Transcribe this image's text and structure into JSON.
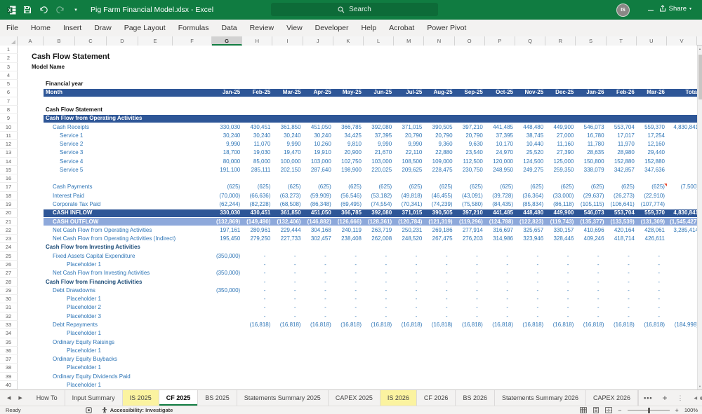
{
  "titlebar": {
    "title": "Pig Farm Financial Model.xlsx - Excel",
    "search_placeholder": "Search",
    "avatar_initials": "IS"
  },
  "ribbon": {
    "tabs": [
      "File",
      "Home",
      "Insert",
      "Draw",
      "Page Layout",
      "Formulas",
      "Data",
      "Review",
      "View",
      "Developer",
      "Help",
      "Acrobat",
      "Power Pivot"
    ],
    "share_label": "Share"
  },
  "sheet": {
    "columns": [
      "A",
      "B",
      "C",
      "D",
      "E",
      "F",
      "G",
      "H",
      "I",
      "J",
      "K",
      "L",
      "M",
      "N",
      "O",
      "P",
      "Q",
      "R",
      "S",
      "T",
      "U",
      "V"
    ],
    "selected_column": "G",
    "visible_rows": 40,
    "months": [
      "Jan-25",
      "Feb-25",
      "Mar-25",
      "Apr-25",
      "May-25",
      "Jun-25",
      "Jul-25",
      "Aug-25",
      "Sep-25",
      "Oct-25",
      "Nov-25",
      "Dec-25",
      "Jan-26",
      "Feb-26",
      "Mar-26",
      "Total"
    ],
    "rows": [
      {
        "n": 2,
        "type": "title",
        "label": "Cash Flow Statement"
      },
      {
        "n": 3,
        "type": "subtitle",
        "label": "Model Name"
      },
      {
        "n": 5,
        "type": "boldlabel",
        "label": "Financial year",
        "indent": 0
      },
      {
        "n": 6,
        "type": "monthbar",
        "label": "Month"
      },
      {
        "n": 8,
        "type": "boldlabel",
        "label": "Cash Flow Statement",
        "indent": 0
      },
      {
        "n": 9,
        "type": "bluebar",
        "label": "Cash Flow from Operating Activities"
      },
      {
        "n": 10,
        "type": "data",
        "label": "Cash Receipts",
        "indent": 1,
        "values": [
          "330,030",
          "430,451",
          "361,850",
          "451,050",
          "366,785",
          "392,080",
          "371,015",
          "390,505",
          "397,210",
          "441,485",
          "448,480",
          "449,900",
          "546,073",
          "553,704",
          "559,370",
          "4,830,841"
        ]
      },
      {
        "n": 11,
        "type": "data",
        "label": "Service 1",
        "indent": 2,
        "values": [
          "30,240",
          "30,240",
          "30,240",
          "30,240",
          "34,425",
          "37,395",
          "20,790",
          "20,790",
          "20,790",
          "37,395",
          "38,745",
          "27,000",
          "16,780",
          "17,017",
          "17,254",
          ""
        ]
      },
      {
        "n": 12,
        "type": "data",
        "label": "Service 2",
        "indent": 2,
        "values": [
          "9,990",
          "11,070",
          "9,990",
          "10,260",
          "9,810",
          "9,990",
          "9,990",
          "9,360",
          "9,630",
          "10,170",
          "10,440",
          "11,160",
          "11,780",
          "11,970",
          "12,160",
          ""
        ]
      },
      {
        "n": 13,
        "type": "data",
        "label": "Service 3",
        "indent": 2,
        "values": [
          "18,700",
          "19,030",
          "19,470",
          "19,910",
          "20,900",
          "21,670",
          "22,110",
          "22,880",
          "23,540",
          "24,970",
          "25,520",
          "27,390",
          "28,635",
          "28,980",
          "29,440",
          ""
        ]
      },
      {
        "n": 14,
        "type": "data",
        "label": "Service 4",
        "indent": 2,
        "values": [
          "80,000",
          "85,000",
          "100,000",
          "103,000",
          "102,750",
          "103,000",
          "108,500",
          "109,000",
          "112,500",
          "120,000",
          "124,500",
          "125,000",
          "150,800",
          "152,880",
          "152,880",
          ""
        ]
      },
      {
        "n": 15,
        "type": "data",
        "label": "Service 5",
        "indent": 2,
        "values": [
          "191,100",
          "285,111",
          "202,150",
          "287,640",
          "198,900",
          "220,025",
          "209,625",
          "228,475",
          "230,750",
          "248,950",
          "249,275",
          "259,350",
          "338,079",
          "342,857",
          "347,636",
          ""
        ]
      },
      {
        "n": 17,
        "type": "data",
        "label": "Cash Payments",
        "indent": 1,
        "comment_col": 14,
        "values": [
          "(625)",
          "(625)",
          "(625)",
          "(625)",
          "(625)",
          "(625)",
          "(625)",
          "(625)",
          "(625)",
          "(625)",
          "(625)",
          "(625)",
          "(625)",
          "(625)",
          "(625)",
          "(7,500)"
        ]
      },
      {
        "n": 18,
        "type": "data",
        "label": "Interest Paid",
        "indent": 1,
        "values": [
          "(70,000)",
          "(66,636)",
          "(63,273)",
          "(59,909)",
          "(56,546)",
          "(53,182)",
          "(49,818)",
          "(46,455)",
          "(43,091)",
          "(39,728)",
          "(36,364)",
          "(33,000)",
          "(29,637)",
          "(26,273)",
          "(22,910)",
          ""
        ]
      },
      {
        "n": 19,
        "type": "data",
        "label": "Corporate Tax Paid",
        "indent": 1,
        "values": [
          "(62,244)",
          "(82,228)",
          "(68,508)",
          "(86,348)",
          "(69,495)",
          "(74,554)",
          "(70,341)",
          "(74,239)",
          "(75,580)",
          "(84,435)",
          "(85,834)",
          "(86,118)",
          "(105,115)",
          "(106,641)",
          "(107,774)",
          ""
        ]
      },
      {
        "n": 20,
        "type": "inflowbar",
        "label": "CASH INFLOW",
        "values": [
          "330,030",
          "430,451",
          "361,850",
          "451,050",
          "366,785",
          "392,080",
          "371,015",
          "390,505",
          "397,210",
          "441,485",
          "448,480",
          "449,900",
          "546,073",
          "553,704",
          "559,370",
          "4,830,841"
        ]
      },
      {
        "n": 21,
        "type": "outflowbar",
        "label": "CASH OUTFLOW",
        "values": [
          "(132,869)",
          "(149,490)",
          "(132,406)",
          "(146,882)",
          "(126,666)",
          "(128,361)",
          "(120,784)",
          "(121,319)",
          "(119,296)",
          "(124,788)",
          "(122,823)",
          "(119,743)",
          "(135,377)",
          "(133,539)",
          "(131,309)",
          "(1,545,427)"
        ]
      },
      {
        "n": 22,
        "type": "data",
        "label": "Net Cash Flow from Operating Activities",
        "indent": 0,
        "values": [
          "197,161",
          "280,961",
          "229,444",
          "304,168",
          "240,119",
          "263,719",
          "250,231",
          "269,186",
          "277,914",
          "316,697",
          "325,657",
          "330,157",
          "410,696",
          "420,164",
          "428,061",
          "3,285,414"
        ]
      },
      {
        "n": 23,
        "type": "data",
        "label": "Net Cash Flow from Operating Activities (Indirect)",
        "indent": 0,
        "values": [
          "195,450",
          "279,250",
          "227,733",
          "302,457",
          "238,408",
          "262,008",
          "248,520",
          "267,475",
          "276,203",
          "314,986",
          "323,946",
          "328,446",
          "409,246",
          "418,714",
          "426,611",
          ""
        ]
      },
      {
        "n": 24,
        "type": "section",
        "label": "Cash Flow from Investing Activities"
      },
      {
        "n": 25,
        "type": "data",
        "label": "Fixed Assets Capital Expenditure",
        "indent": 1,
        "values": [
          "(350,000)",
          "-",
          "-",
          "-",
          "-",
          "-",
          "-",
          "-",
          "-",
          "-",
          "-",
          "-",
          "-",
          "-",
          "-",
          ""
        ]
      },
      {
        "n": 26,
        "type": "data",
        "label": "Placeholder 1",
        "indent": 3,
        "values": [
          "",
          "-",
          "-",
          "-",
          "-",
          "-",
          "-",
          "-",
          "-",
          "-",
          "-",
          "-",
          "-",
          "-",
          "-",
          ""
        ]
      },
      {
        "n": 27,
        "type": "data",
        "label": "Net Cash Flow from Investing Activities",
        "indent": 1,
        "values": [
          "(350,000)",
          "-",
          "-",
          "-",
          "-",
          "-",
          "-",
          "-",
          "-",
          "-",
          "-",
          "-",
          "-",
          "-",
          "-",
          ""
        ]
      },
      {
        "n": 28,
        "type": "section",
        "label": "Cash Flow from Financing Activities",
        "values": [
          "",
          "-",
          "-",
          "-",
          "-",
          "-",
          "-",
          "-",
          "-",
          "-",
          "-",
          "-",
          "-",
          "-",
          "-",
          ""
        ]
      },
      {
        "n": 29,
        "type": "data",
        "label": "Debt Drawdowns",
        "indent": 1,
        "values": [
          "(350,000)",
          "-",
          "-",
          "-",
          "-",
          "-",
          "-",
          "-",
          "-",
          "-",
          "-",
          "-",
          "-",
          "-",
          "-",
          ""
        ]
      },
      {
        "n": 30,
        "type": "data",
        "label": "Placeholder 1",
        "indent": 3,
        "values": [
          "",
          "-",
          "-",
          "-",
          "-",
          "-",
          "-",
          "-",
          "-",
          "-",
          "-",
          "-",
          "-",
          "-",
          "-",
          ""
        ]
      },
      {
        "n": 31,
        "type": "data",
        "label": "Placeholder 2",
        "indent": 3,
        "values": [
          "",
          "-",
          "-",
          "-",
          "-",
          "-",
          "-",
          "-",
          "-",
          "-",
          "-",
          "-",
          "-",
          "-",
          "-",
          ""
        ]
      },
      {
        "n": 32,
        "type": "data",
        "label": "Placeholder 3",
        "indent": 3,
        "values": [
          "",
          "-",
          "-",
          "-",
          "-",
          "-",
          "-",
          "-",
          "-",
          "-",
          "-",
          "-",
          "-",
          "-",
          "-",
          ""
        ]
      },
      {
        "n": 33,
        "type": "data",
        "label": "Debt Repayments",
        "indent": 1,
        "values": [
          "",
          "(16,818)",
          "(16,818)",
          "(16,818)",
          "(16,818)",
          "(16,818)",
          "(16,818)",
          "(16,818)",
          "(16,818)",
          "(16,818)",
          "(16,818)",
          "(16,818)",
          "(16,818)",
          "(16,818)",
          "(16,818)",
          "(184,998)"
        ]
      },
      {
        "n": 34,
        "type": "data",
        "label": "Placeholder 1",
        "indent": 3
      },
      {
        "n": 35,
        "type": "data",
        "label": "Ordinary Equity Raisings",
        "indent": 1
      },
      {
        "n": 36,
        "type": "data",
        "label": "Placeholder 1",
        "indent": 3
      },
      {
        "n": 37,
        "type": "data",
        "label": "Ordinary Equity Buybacks",
        "indent": 1
      },
      {
        "n": 38,
        "type": "data",
        "label": "Placeholder 1",
        "indent": 3
      },
      {
        "n": 39,
        "type": "data",
        "label": "Ordinary Equity Dividends Paid",
        "indent": 1
      },
      {
        "n": 40,
        "type": "data",
        "label": "Placeholder 1",
        "indent": 3
      }
    ]
  },
  "sheet_tabs": {
    "items": [
      {
        "label": "How To"
      },
      {
        "label": "Input Summary"
      },
      {
        "label": "IS 2025",
        "highlight": true
      },
      {
        "label": "CF 2025",
        "active": true
      },
      {
        "label": "BS 2025"
      },
      {
        "label": "Statements Summary 2025"
      },
      {
        "label": "CAPEX 2025"
      },
      {
        "label": "IS 2026",
        "highlight": true
      },
      {
        "label": "CF 2026"
      },
      {
        "label": "BS 2026"
      },
      {
        "label": "Statements Summary 2026"
      },
      {
        "label": "CAPEX 2026"
      }
    ]
  },
  "statusbar": {
    "mode": "Ready",
    "accessibility": "Accessibility: Investigate",
    "zoom": "100%"
  },
  "colors": {
    "accent_green": "#107C41",
    "bar_blue": "#2E5697",
    "bar_light_blue": "#8EA9DB",
    "data_blue": "#2E75B6",
    "section_navy": "#1F4E79",
    "tab_yellow": "#FBF3A0"
  }
}
